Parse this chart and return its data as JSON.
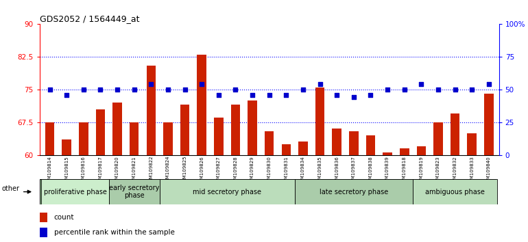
{
  "title": "GDS2052 / 1564449_at",
  "samples": [
    "GSM109814",
    "GSM109815",
    "GSM109816",
    "GSM109817",
    "GSM109820",
    "GSM109821",
    "GSM109822",
    "GSM109824",
    "GSM109825",
    "GSM109826",
    "GSM109827",
    "GSM109828",
    "GSM109829",
    "GSM109830",
    "GSM109831",
    "GSM109834",
    "GSM109835",
    "GSM109836",
    "GSM109837",
    "GSM109838",
    "GSM109839",
    "GSM109818",
    "GSM109819",
    "GSM109823",
    "GSM109832",
    "GSM109833",
    "GSM109840"
  ],
  "counts": [
    67.5,
    63.5,
    67.5,
    70.5,
    72.0,
    67.5,
    80.5,
    67.5,
    71.5,
    83.0,
    68.5,
    71.5,
    72.5,
    65.5,
    62.5,
    63.0,
    75.5,
    66.0,
    65.5,
    64.5,
    60.5,
    61.5,
    62.0,
    67.5,
    69.5,
    65.0,
    74.0
  ],
  "percentile": [
    50,
    46,
    50,
    50,
    50,
    50,
    54,
    50,
    50,
    54,
    46,
    50,
    46,
    46,
    46,
    50,
    54,
    46,
    44,
    46,
    50,
    50,
    54,
    50,
    50,
    50,
    54
  ],
  "ylim_left": [
    60,
    90
  ],
  "ylim_right": [
    0,
    100
  ],
  "yticks_left": [
    60,
    67.5,
    75,
    82.5,
    90
  ],
  "yticks_right": [
    0,
    25,
    50,
    75,
    100
  ],
  "ytick_labels_left": [
    "60",
    "67.5",
    "75",
    "82.5",
    "90"
  ],
  "ytick_labels_right": [
    "0",
    "25",
    "50",
    "75",
    "100%"
  ],
  "hlines": [
    67.5,
    75,
    82.5
  ],
  "phases": [
    {
      "label": "proliferative phase",
      "start": 0,
      "end": 4,
      "color": "#bbeecc"
    },
    {
      "label": "early secretory\nphase",
      "start": 4,
      "end": 7,
      "color": "#99ddaa"
    },
    {
      "label": "mid secretory phase",
      "start": 7,
      "end": 15,
      "color": "#aaddaa"
    },
    {
      "label": "late secretory phase",
      "start": 15,
      "end": 22,
      "color": "#88cc88"
    },
    {
      "label": "ambiguous phase",
      "start": 22,
      "end": 27,
      "color": "#99dd99"
    }
  ],
  "bar_color": "#cc2200",
  "dot_color": "#0000cc",
  "bar_width": 0.55,
  "dot_size": 18,
  "background_color": "#ffffff",
  "plot_bg_color": "#ffffff",
  "title_fontsize": 9,
  "axis_fontsize": 7,
  "phase_fontsize": 7,
  "legend_fontsize": 7.5,
  "ymin": 60
}
